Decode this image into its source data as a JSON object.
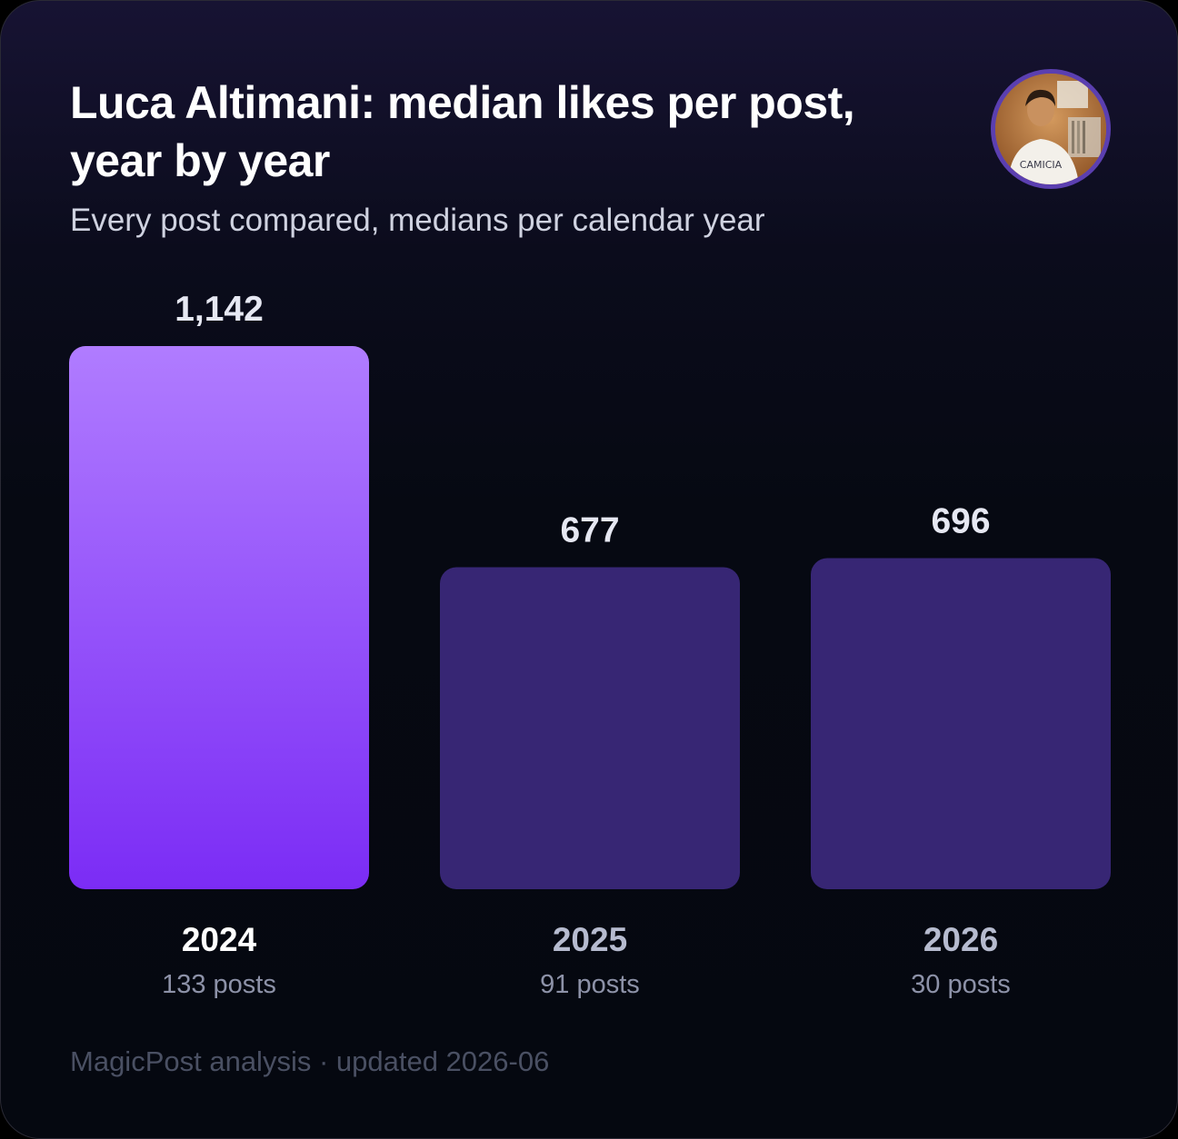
{
  "header": {
    "title": "Luca Altimani: median likes per post, year by year",
    "subtitle": "Every post compared, medians per calendar year"
  },
  "avatar": {
    "icon": "profile-photo-avatar",
    "shirt_text": "CAMICIA"
  },
  "chart_data": {
    "type": "bar",
    "title": "Luca Altimani: median likes per post, year by year",
    "subtitle": "Every post compared, medians per calendar year",
    "categories": [
      "2024",
      "2025",
      "2026"
    ],
    "values": [
      1142,
      677,
      696
    ],
    "value_labels": [
      "1,142",
      "677",
      "696"
    ],
    "post_counts": [
      "133 posts",
      "91 posts",
      "30 posts"
    ],
    "highlight_index": 0,
    "ylim": [
      0,
      1142
    ],
    "grid": false,
    "colors": {
      "highlight_top": "#b07cff",
      "highlight_bottom": "#7b2cf5",
      "muted": "#372674",
      "value_label": "#e6e8f2",
      "category_highlight": "#ffffff",
      "category_muted": "#b6bbcf",
      "post_count": "#8d92a8"
    }
  },
  "footer": {
    "text": "MagicPost analysis · updated 2026-06"
  }
}
